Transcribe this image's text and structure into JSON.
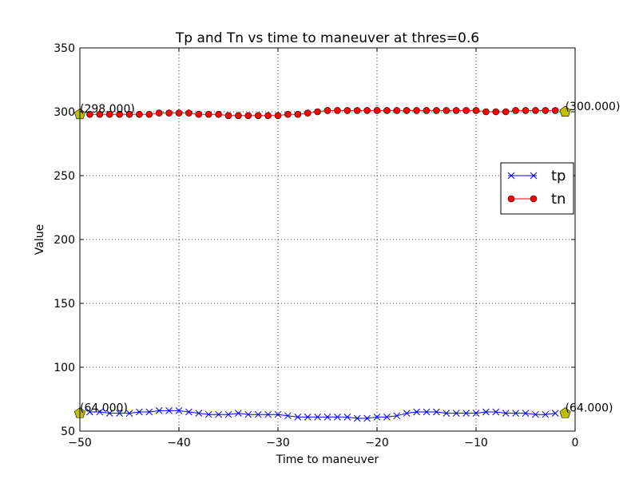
{
  "chart_data": {
    "type": "line",
    "title": "Tp and Tn vs time to maneuver at thres=0.6",
    "xlabel": "Time to maneuver",
    "ylabel": "Value",
    "xlim": [
      -50,
      0
    ],
    "ylim": [
      50,
      350
    ],
    "xticks": [
      -50,
      -40,
      -30,
      -20,
      -10,
      0
    ],
    "yticks": [
      50,
      100,
      150,
      200,
      250,
      300,
      350
    ],
    "xtick_labels": [
      "−50",
      "−40",
      "−30",
      "−20",
      "−10",
      "0"
    ],
    "ytick_labels": [
      "50",
      "100",
      "150",
      "200",
      "250",
      "300",
      "350"
    ],
    "grid": true,
    "legend": {
      "position": "center-right",
      "entries": [
        "tp",
        "tn"
      ]
    },
    "x": [
      -49,
      -48,
      -47,
      -46,
      -45,
      -44,
      -43,
      -42,
      -41,
      -40,
      -39,
      -38,
      -37,
      -36,
      -35,
      -34,
      -33,
      -32,
      -31,
      -30,
      -29,
      -28,
      -27,
      -26,
      -25,
      -24,
      -23,
      -22,
      -21,
      -20,
      -19,
      -18,
      -17,
      -16,
      -15,
      -14,
      -13,
      -12,
      -11,
      -10,
      -9,
      -8,
      -7,
      -6,
      -5,
      -4,
      -3,
      -2
    ],
    "series": [
      {
        "name": "tp",
        "color": "#0000ff",
        "marker": "x",
        "values": [
          65,
          65,
          64,
          64,
          64,
          65,
          65,
          66,
          66,
          66,
          65,
          64,
          63,
          63,
          63,
          64,
          63,
          63,
          63,
          63,
          62,
          61,
          61,
          61,
          61,
          61,
          61,
          60,
          60,
          61,
          61,
          62,
          64,
          65,
          65,
          65,
          64,
          64,
          64,
          64,
          65,
          65,
          64,
          64,
          64,
          63,
          63,
          64
        ]
      },
      {
        "name": "tn",
        "color": "#ff0000",
        "marker": "o",
        "values": [
          298,
          298,
          298,
          298,
          298,
          298,
          298,
          299,
          299,
          299,
          299,
          298,
          298,
          298,
          297,
          297,
          297,
          297,
          297,
          297,
          298,
          298,
          299,
          300,
          301,
          301,
          301,
          301,
          301,
          301,
          301,
          301,
          301,
          301,
          301,
          301,
          301,
          301,
          301,
          301,
          300,
          300,
          300,
          301,
          301,
          301,
          301,
          301
        ]
      }
    ],
    "annotations": [
      {
        "x": -50,
        "y": 298,
        "label": "(298.000)"
      },
      {
        "x": -1,
        "y": 300,
        "label": "(300.000)"
      },
      {
        "x": -50,
        "y": 64,
        "label": "(64.000)"
      },
      {
        "x": -1,
        "y": 64,
        "label": "(64.000)"
      }
    ],
    "highlight_color": "#bfbf00"
  }
}
